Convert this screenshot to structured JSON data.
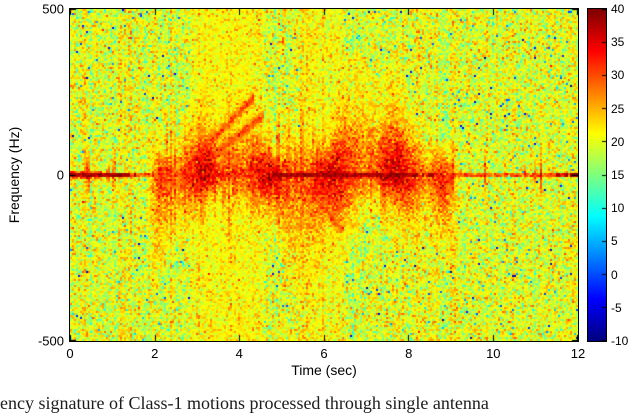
{
  "figure": {
    "ylabel": "Frequency (Hz)",
    "xlabel": "Time (sec)",
    "y_ticks": [
      "500",
      "0",
      "-500"
    ],
    "x_ticks": [
      "0",
      "2",
      "4",
      "6",
      "8",
      "10",
      "12"
    ],
    "colorbar": {
      "ticks": [
        "40",
        "35",
        "30",
        "25",
        "20",
        "15",
        "10",
        "5",
        "0",
        "-5",
        "-10"
      ],
      "min": -10,
      "max": 40,
      "colormap": "jet"
    }
  },
  "caption": "ency signature of Class-1 motions processed through single antenna",
  "chart_data": {
    "type": "heatmap",
    "title": "",
    "xlabel": "Time (sec)",
    "ylabel": "Frequency (Hz)",
    "x_range": [
      0,
      12
    ],
    "y_range": [
      -500,
      500
    ],
    "color_range": [
      -10,
      40
    ],
    "colormap": "jet",
    "legend": "colorbar right, -10 to 40 dB",
    "grid": false,
    "noise_floor_db": 20,
    "zero_line_db": 38,
    "event": {
      "t_start": 1.8,
      "t_end": 9.2,
      "freq_spread_hz": 150,
      "peak_db": 34
    },
    "description": "Doppler spectrogram: yellow-green noise floor (~20 dB) over full band; persistent dark-red clutter ridge at 0 Hz (~38 dB) across all 12 s; strong micro-Doppler blob of Class-1 motion from ~1.8 s to ~9.2 s spreading roughly +/-150 Hz (28-36 dB) with vertical bursts and short chirp streaks reaching +/-250 Hz; sparse cyan/blue specks (<5 dB)."
  }
}
